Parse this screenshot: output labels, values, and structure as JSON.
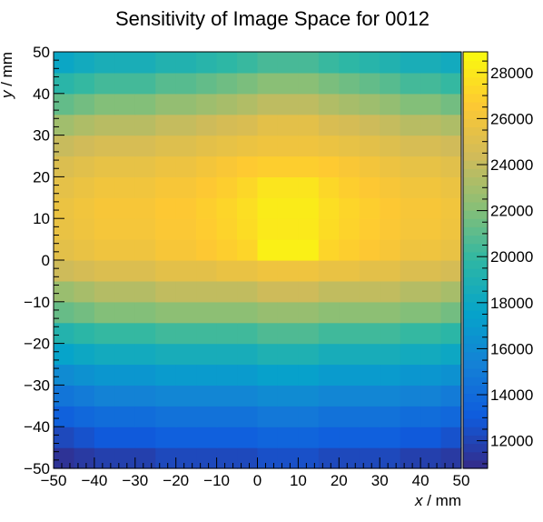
{
  "chart_data": {
    "type": "heatmap",
    "title": "Sensitivity of Image Space for 0012",
    "xlabel_var": "x",
    "xlabel_unit": " / mm",
    "ylabel_var": "y",
    "ylabel_unit": " / mm",
    "xlim": [
      -50,
      50
    ],
    "ylim": [
      -50,
      50
    ],
    "xticks": [
      -50,
      -40,
      -30,
      -20,
      -10,
      0,
      10,
      20,
      30,
      40,
      50
    ],
    "yticks": [
      -50,
      -40,
      -30,
      -20,
      -10,
      0,
      10,
      20,
      30,
      40,
      50
    ],
    "grid": false,
    "palette": "kBird",
    "colorbar": {
      "range": [
        10800,
        28900
      ],
      "ticks": [
        12000,
        14000,
        16000,
        18000,
        20000,
        22000,
        24000,
        26000,
        28000
      ]
    },
    "nx": 21,
    "ny": 21,
    "x_bins": [
      -50,
      -45,
      -40,
      -35,
      -30,
      -25,
      -20,
      -15,
      -10,
      -5,
      0,
      5,
      10,
      15,
      20,
      25,
      30,
      35,
      40,
      45,
      50
    ],
    "y_bins": [
      -50,
      -45,
      -40,
      -35,
      -30,
      -25,
      -20,
      -15,
      -10,
      -5,
      0,
      5,
      10,
      15,
      20,
      25,
      30,
      35,
      40,
      45,
      50
    ],
    "z_rows_bottom_to_top": [
      [
        11200,
        11500,
        11800,
        11800,
        11800,
        12200,
        12200,
        12200,
        12200,
        12200,
        12500,
        12500,
        12500,
        12200,
        12200,
        12200,
        12200,
        11800,
        11800,
        11500,
        11200
      ],
      [
        12200,
        12600,
        13000,
        13000,
        13000,
        13300,
        13300,
        13300,
        13300,
        13300,
        13600,
        13600,
        13600,
        13300,
        13300,
        13300,
        13300,
        13000,
        13000,
        12600,
        12200
      ],
      [
        13400,
        13800,
        14100,
        14100,
        14100,
        14400,
        14400,
        14400,
        14400,
        14400,
        14800,
        14800,
        14800,
        14400,
        14400,
        14400,
        14400,
        14100,
        14100,
        13800,
        13400
      ],
      [
        14600,
        15000,
        15400,
        15400,
        15400,
        15700,
        15700,
        15700,
        15700,
        15700,
        16000,
        16000,
        16000,
        15700,
        15700,
        15700,
        15700,
        15400,
        15400,
        15000,
        14600
      ],
      [
        16000,
        16400,
        16700,
        16700,
        16700,
        17000,
        17000,
        17000,
        17000,
        17000,
        17400,
        17400,
        17400,
        17000,
        17000,
        17000,
        17000,
        16700,
        16700,
        16400,
        16000
      ],
      [
        17600,
        18000,
        18300,
        18300,
        18300,
        18600,
        18600,
        18600,
        18600,
        18600,
        19000,
        19000,
        19000,
        18600,
        18600,
        18600,
        18600,
        18300,
        18300,
        18000,
        17600
      ],
      [
        19300,
        19700,
        20000,
        20000,
        20000,
        20300,
        20300,
        20300,
        20300,
        20300,
        20700,
        20700,
        20700,
        20300,
        20300,
        20300,
        20300,
        20000,
        20000,
        19700,
        19300
      ],
      [
        21300,
        21600,
        22000,
        22000,
        22000,
        22300,
        22300,
        22300,
        22300,
        22300,
        22600,
        22600,
        22600,
        22300,
        22300,
        22300,
        22300,
        22000,
        22000,
        21600,
        21300
      ],
      [
        22700,
        23100,
        23500,
        23500,
        23500,
        23900,
        23900,
        23900,
        23900,
        23900,
        24300,
        24300,
        24300,
        23900,
        23900,
        23900,
        23900,
        23500,
        23500,
        23100,
        22700
      ],
      [
        24300,
        24600,
        24900,
        24900,
        24900,
        25300,
        25300,
        25300,
        25600,
        25600,
        25900,
        25900,
        25900,
        25600,
        25600,
        25300,
        25300,
        24900,
        24900,
        24600,
        24300
      ],
      [
        25300,
        25600,
        25900,
        25900,
        25900,
        26300,
        26300,
        26600,
        26900,
        27200,
        28400,
        28400,
        28400,
        27200,
        26900,
        26600,
        26300,
        25900,
        25900,
        25600,
        25300
      ],
      [
        25600,
        25900,
        26200,
        26200,
        26200,
        26500,
        26500,
        26800,
        27100,
        27500,
        28100,
        28100,
        28100,
        27500,
        27100,
        26800,
        26500,
        26200,
        26200,
        25900,
        25600
      ],
      [
        25700,
        26000,
        26300,
        26300,
        26300,
        26600,
        26600,
        26900,
        27200,
        27600,
        28200,
        28200,
        28200,
        27600,
        27200,
        26900,
        26600,
        26300,
        26300,
        26000,
        25700
      ],
      [
        25400,
        25700,
        26000,
        26000,
        26000,
        26300,
        26300,
        26600,
        26900,
        27300,
        27900,
        27900,
        27900,
        27300,
        26900,
        26600,
        26300,
        26000,
        26000,
        25700,
        25400
      ],
      [
        24900,
        25200,
        25500,
        25500,
        25500,
        25800,
        25800,
        26100,
        26400,
        26700,
        26900,
        26900,
        26900,
        26700,
        26400,
        26100,
        25800,
        25500,
        25500,
        25200,
        24900
      ],
      [
        24100,
        24400,
        24700,
        24700,
        24700,
        25000,
        25000,
        25300,
        25500,
        25700,
        25900,
        25900,
        25900,
        25700,
        25500,
        25300,
        25000,
        24700,
        24700,
        24400,
        24100
      ],
      [
        22900,
        23300,
        23600,
        23600,
        23600,
        24000,
        24000,
        24300,
        24600,
        24800,
        25300,
        25300,
        25300,
        24800,
        24600,
        24300,
        24000,
        23600,
        23600,
        23300,
        22900
      ],
      [
        21200,
        21600,
        22000,
        22000,
        22000,
        22500,
        22500,
        22800,
        23100,
        23400,
        23800,
        23800,
        23800,
        23400,
        23100,
        22800,
        22500,
        22000,
        22000,
        21600,
        21200
      ],
      [
        19600,
        20000,
        20400,
        20400,
        20400,
        20900,
        20900,
        21200,
        21500,
        21800,
        22200,
        22200,
        22200,
        21800,
        21500,
        21200,
        20900,
        20400,
        20400,
        20000,
        19600
      ],
      [
        17900,
        18300,
        18700,
        18700,
        18700,
        19200,
        19200,
        19500,
        19800,
        20100,
        20500,
        20500,
        20500,
        20100,
        19800,
        19500,
        19200,
        18700,
        18700,
        18300,
        17900
      ],
      [
        15800,
        16200,
        16600,
        16600,
        16600,
        17100,
        17100,
        17400,
        17700,
        18000,
        18400,
        18400,
        18400,
        18000,
        17700,
        17400,
        17100,
        16600,
        16600,
        16200,
        15800
      ]
    ]
  }
}
